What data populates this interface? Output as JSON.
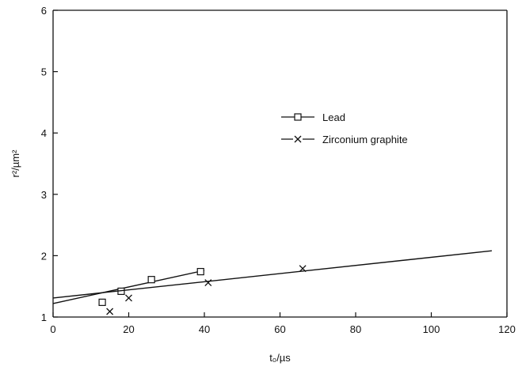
{
  "chart_data": {
    "type": "scatter",
    "title": "",
    "xlabel": "t₀/µs",
    "ylabel": "r²/µm²",
    "xlim": [
      0,
      120
    ],
    "ylim": [
      1,
      6
    ],
    "xticks": [
      "0",
      "20",
      "40",
      "60",
      "80",
      "100",
      "120"
    ],
    "yticks": [
      "1",
      "2",
      "3",
      "4",
      "5",
      "6"
    ],
    "grid": false,
    "legend_position": "center-right",
    "series": [
      {
        "name": "Lead",
        "marker": "square",
        "points": [
          [
            13,
            1.24
          ],
          [
            18,
            1.42
          ],
          [
            26,
            1.61
          ],
          [
            39,
            1.74
          ]
        ],
        "fit_line": [
          [
            0,
            1.22
          ],
          [
            40,
            1.76
          ]
        ]
      },
      {
        "name": "Zirconium graphite",
        "marker": "x",
        "points": [
          [
            15,
            1.09
          ],
          [
            20,
            1.31
          ],
          [
            41,
            1.56
          ],
          [
            66,
            1.79
          ]
        ],
        "fit_line": [
          [
            0,
            1.31
          ],
          [
            116,
            2.08
          ]
        ]
      }
    ]
  }
}
